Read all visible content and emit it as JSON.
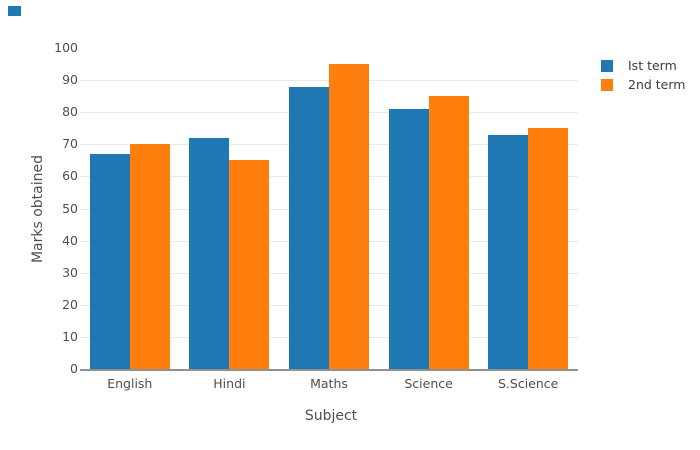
{
  "chart_data": {
    "type": "bar",
    "mode": "grouped",
    "xlabel": "Subject",
    "ylabel": "Marks obtained",
    "categories": [
      "English",
      "Hindi",
      "Maths",
      "Science",
      "S.Science"
    ],
    "series": [
      {
        "name": "Ist term",
        "color": "#1f77b4",
        "values": [
          67,
          72,
          88,
          81,
          73
        ]
      },
      {
        "name": "2nd term",
        "color": "#ff7f0e",
        "values": [
          70,
          65,
          95,
          85,
          75
        ]
      }
    ],
    "yticks": [
      0,
      10,
      20,
      30,
      40,
      50,
      60,
      70,
      80,
      90,
      100
    ],
    "gridline_values": [
      10,
      20,
      30,
      40,
      50,
      60,
      70,
      80,
      90
    ],
    "ylim": [
      0,
      105
    ],
    "grid": "horizontal",
    "legend_position": "outside-right",
    "background": "#ffffff"
  },
  "decor": {
    "stray_square_color": "#1f77b4"
  }
}
